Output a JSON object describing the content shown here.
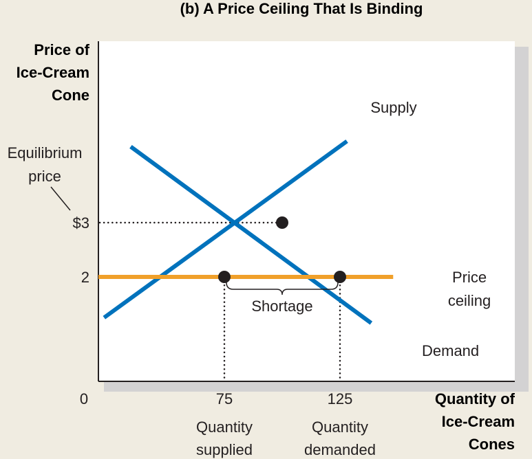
{
  "chart_data": {
    "type": "line",
    "title": "(b) A Price Ceiling That Is Binding",
    "ylabel": [
      "Price of",
      "Ice-Cream",
      "Cone"
    ],
    "xlabel": [
      "Quantity of",
      "Ice-Cream",
      "Cones"
    ],
    "origin_label": "0",
    "xlim": [
      0,
      175
    ],
    "ylim": [
      0,
      5
    ],
    "x_ticks": [
      {
        "value": 75,
        "label": "75",
        "caption": [
          "Quantity",
          "supplied"
        ]
      },
      {
        "value": 125,
        "label": "125",
        "caption": [
          "Quantity",
          "demanded"
        ]
      }
    ],
    "y_ticks": [
      {
        "value": 3,
        "label": "$3",
        "caption": [
          "Equilibrium",
          "price"
        ]
      },
      {
        "value": 2,
        "label": "2"
      }
    ],
    "series": [
      {
        "name": "Supply",
        "color": "#0072bc",
        "points": [
          [
            23,
            1.25
          ],
          [
            128,
            4.5
          ]
        ]
      },
      {
        "name": "Demand",
        "color": "#0072bc",
        "points": [
          [
            34.5,
            4.4
          ],
          [
            138.5,
            1.15
          ]
        ]
      },
      {
        "name": "Price ceiling",
        "label": [
          "Price",
          "ceiling"
        ],
        "color": "#f0a02a",
        "points": [
          [
            0,
            2
          ],
          [
            148,
            2
          ]
        ]
      }
    ],
    "points": [
      {
        "name": "equilibrium",
        "x": 100,
        "y": 3
      },
      {
        "name": "quantity-supplied-point",
        "x": 75,
        "y": 2
      },
      {
        "name": "quantity-demanded-point",
        "x": 125,
        "y": 2
      }
    ],
    "annotations": [
      {
        "text": "Shortage",
        "from_x": 75,
        "to_x": 125,
        "y": 2
      }
    ],
    "grid": false
  }
}
